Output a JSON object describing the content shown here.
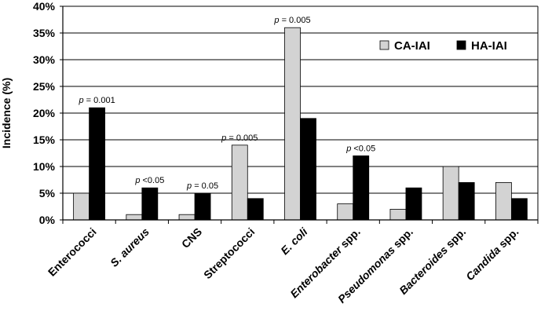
{
  "chart_data": {
    "type": "bar",
    "ylabel": "Incidence (%)",
    "ylim": [
      0,
      40
    ],
    "yticks": [
      0,
      5,
      10,
      15,
      20,
      25,
      30,
      35,
      40
    ],
    "ytick_suffix": "%",
    "grid": true,
    "legend_position": "top-right",
    "categories": [
      {
        "parts": [
          {
            "text": "Enterococci",
            "italic": false
          }
        ]
      },
      {
        "parts": [
          {
            "text": "S. aureus",
            "italic": true
          }
        ]
      },
      {
        "parts": [
          {
            "text": "CNS",
            "italic": false
          }
        ]
      },
      {
        "parts": [
          {
            "text": "Streptococci",
            "italic": false
          }
        ]
      },
      {
        "parts": [
          {
            "text": "E. coli",
            "italic": true
          }
        ]
      },
      {
        "parts": [
          {
            "text": "Enterobacter",
            "italic": true
          },
          {
            "text": " spp.",
            "italic": false
          }
        ]
      },
      {
        "parts": [
          {
            "text": "Pseudomonas",
            "italic": true
          },
          {
            "text": " spp.",
            "italic": false
          }
        ]
      },
      {
        "parts": [
          {
            "text": "Bacteroides",
            "italic": true
          },
          {
            "text": " spp.",
            "italic": false
          }
        ]
      },
      {
        "parts": [
          {
            "text": "Candida",
            "italic": true
          },
          {
            "text": " spp.",
            "italic": false
          }
        ]
      }
    ],
    "series": [
      {
        "name": "CA-IAI",
        "color": "#d3d3d3",
        "values": [
          5,
          1,
          1,
          14,
          36,
          3,
          2,
          10,
          7
        ]
      },
      {
        "name": "HA-IAI",
        "color": "#000000",
        "values": [
          21,
          6,
          5,
          4,
          19,
          12,
          6,
          7,
          4
        ]
      }
    ],
    "annotations": [
      {
        "category": 0,
        "series": 1,
        "label": "p = 0.001"
      },
      {
        "category": 1,
        "series": 1,
        "label": "p <0.05"
      },
      {
        "category": 2,
        "series": 1,
        "label": "p = 0.05"
      },
      {
        "category": 3,
        "series": 0,
        "label": "p = 0.005"
      },
      {
        "category": 4,
        "series": 0,
        "label": "p = 0.005"
      },
      {
        "category": 5,
        "series": 1,
        "label": "p <0.05"
      }
    ]
  }
}
